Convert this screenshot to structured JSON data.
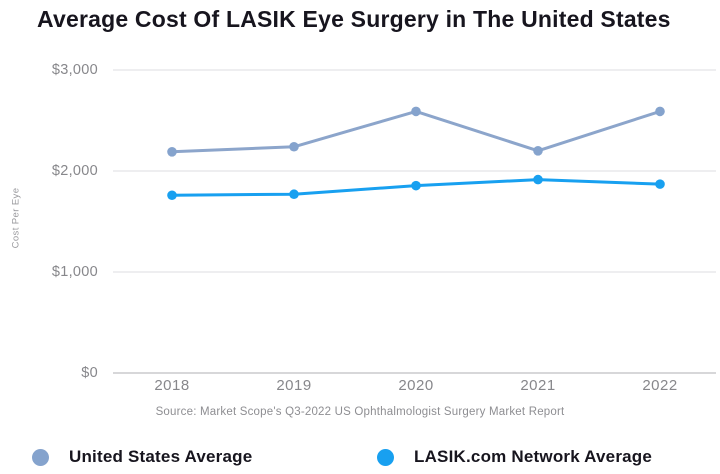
{
  "chart_data": {
    "type": "line",
    "title": "Average Cost Of LASIK Eye Surgery in The United States",
    "ylabel": "Cost Per Eye",
    "xlabel": "",
    "source_note": "Source: Market Scope's Q3-2022 US Ophthalmologist Surgery Market Report",
    "categories": [
      "2018",
      "2019",
      "2020",
      "2021",
      "2022"
    ],
    "series": [
      {
        "name": "United States Average",
        "color": "#8CA5CB",
        "marker_color": "#85A3CD",
        "values": [
          2190,
          2240,
          2590,
          2200,
          2590
        ]
      },
      {
        "name": "LASIK.com Network Average",
        "color": "#18A0F0",
        "marker_color": "#18A0F0",
        "values": [
          1760,
          1770,
          1855,
          1915,
          1870
        ]
      }
    ],
    "ylim": [
      0,
      3000
    ],
    "yticks": [
      {
        "value": 0,
        "label": "$0"
      },
      {
        "value": 1000,
        "label": "$1,000"
      },
      {
        "value": 2000,
        "label": "$2,000"
      },
      {
        "value": 3000,
        "label": "$3,000"
      }
    ],
    "grid": "horizontal",
    "gridline_color": "#ececee",
    "axis_line_color": "#d7d7d9",
    "legend_position": "bottom"
  }
}
